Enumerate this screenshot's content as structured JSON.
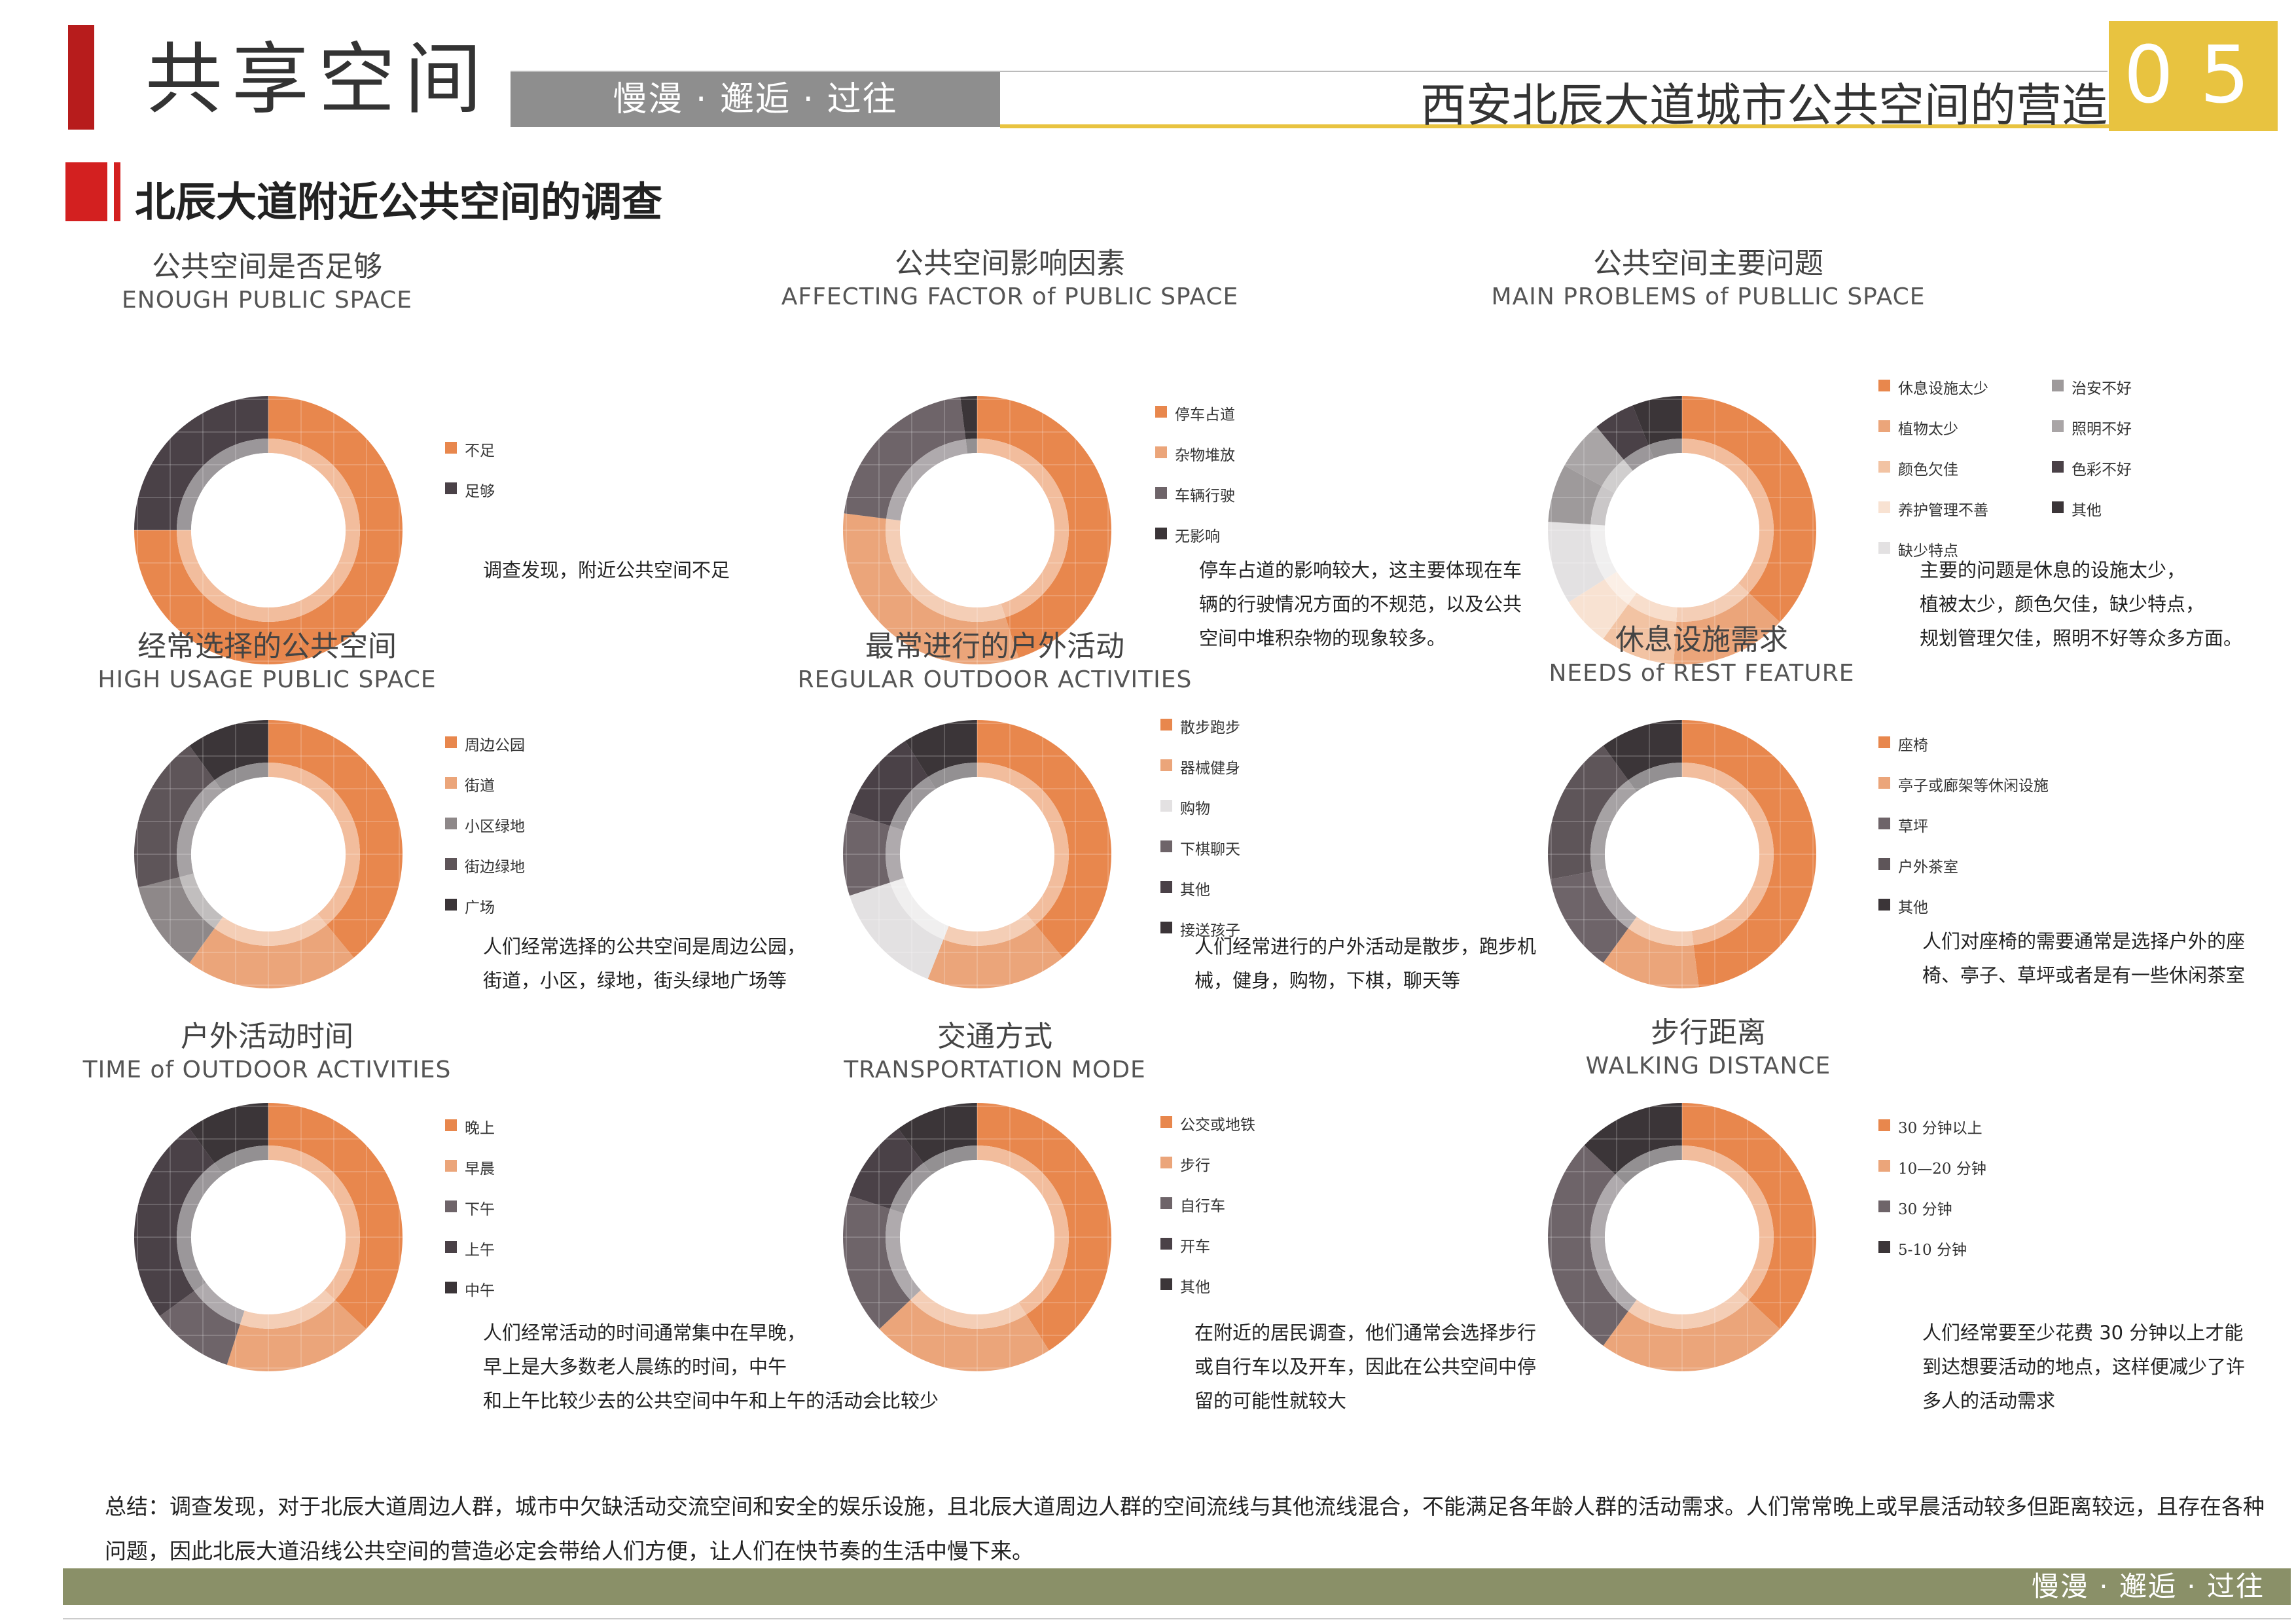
{
  "header": {
    "title": "共享空间",
    "tagline": "慢漫 · 邂逅 · 过往",
    "project": "西安北辰大道城市公共空间的营造",
    "page_num": "05"
  },
  "section": {
    "title": "北辰大道附近公共空间的调查"
  },
  "colors": {
    "orange": "#e8874d",
    "light_orange": "#eba57a",
    "peach": "#f2c3a3",
    "dark": "#4a4147",
    "mid": "#6e6469",
    "gray": "#9e9a9b",
    "light_gray": "#cfcccd",
    "dark2": "#3b3538"
  },
  "charts": [
    {
      "id": "enough",
      "title_cn": "公共空间是否足够",
      "title_en": "ENOUGH PUBLIC SPACE",
      "note": "调查发现，附近公共空间不足",
      "legend": [
        {
          "label": "不足",
          "color": "#e8874d"
        },
        {
          "label": "足够",
          "color": "#4a4147"
        }
      ]
    },
    {
      "id": "factor",
      "title_cn": "公共空间影响因素",
      "title_en": "AFFECTING FACTOR of PUBLIC SPACE",
      "note": "停车占道的影响较大，这主要体现在车\n辆的行驶情况方面的不规范，以及公共\n空间中堆积杂物的现象较多。",
      "legend": [
        {
          "label": "停车占道",
          "color": "#e8874d"
        },
        {
          "label": "杂物堆放",
          "color": "#eba57a"
        },
        {
          "label": "车辆行驶",
          "color": "#6e6469"
        },
        {
          "label": "无影响",
          "color": "#3b3538"
        }
      ]
    },
    {
      "id": "problems",
      "title_cn": "公共空间主要问题",
      "title_en": "MAIN PROBLEMS of PUBLLIC SPACE",
      "note": "主要的问题是休息的设施太少，\n植被太少，颜色欠佳，缺少特点，\n规划管理欠佳，照明不好等众多方面。",
      "legend": [
        {
          "label": "休息设施太少",
          "color": "#e8874d"
        },
        {
          "label": "植物太少",
          "color": "#eba57a"
        },
        {
          "label": "颜色欠佳",
          "color": "#f2c3a3"
        },
        {
          "label": "养护管理不善",
          "color": "#f8e2d2"
        },
        {
          "label": "缺少特点",
          "color": "#e3e1e2"
        },
        {
          "label": "治安不好",
          "color": "#9e9a9b"
        },
        {
          "label": "照明不好",
          "color": "#a9a5a6"
        },
        {
          "label": "色彩不好",
          "color": "#4a4147"
        },
        {
          "label": "其他",
          "color": "#3b3538"
        }
      ]
    },
    {
      "id": "usage",
      "title_cn": "经常选择的公共空间",
      "title_en": "HIGH USAGE PUBLIC SPACE",
      "note": "人们经常选择的公共空间是周边公园，\n街道，小区，绿地，街头绿地广场等",
      "legend": [
        {
          "label": "周边公园",
          "color": "#e8874d"
        },
        {
          "label": "街道",
          "color": "#eba57a"
        },
        {
          "label": "小区绿地",
          "color": "#8e8889"
        },
        {
          "label": "街边绿地",
          "color": "#5e5559"
        },
        {
          "label": "广场",
          "color": "#3b3538"
        }
      ]
    },
    {
      "id": "activities",
      "title_cn": "最常进行的户外活动",
      "title_en": "REGULAR OUTDOOR ACTIVITIES",
      "note": "人们经常进行的户外活动是散步，跑步机\n械，健身，购物，下棋，聊天等",
      "legend": [
        {
          "label": "散步跑步",
          "color": "#e8874d"
        },
        {
          "label": "器械健身",
          "color": "#eba57a"
        },
        {
          "label": "购物",
          "color": "#e3e1e2"
        },
        {
          "label": "下棋聊天",
          "color": "#6e6469"
        },
        {
          "label": "其他",
          "color": "#4a4147"
        },
        {
          "label": "接送孩子",
          "color": "#3b3538"
        }
      ]
    },
    {
      "id": "rest",
      "title_cn": "休息设施需求",
      "title_en": "NEEDS of REST FEATURE",
      "note": "人们对座椅的需要通常是选择户外的座\n椅、亭子、草坪或者是有一些休闲茶室",
      "legend": [
        {
          "label": "座椅",
          "color": "#e8874d"
        },
        {
          "label": "亭子或廊架等休闲设施",
          "color": "#eba57a"
        },
        {
          "label": "草坪",
          "color": "#6e6469"
        },
        {
          "label": "户外茶室",
          "color": "#5e5559"
        },
        {
          "label": "其他",
          "color": "#3b3538"
        }
      ]
    },
    {
      "id": "time",
      "title_cn": "户外活动时间",
      "title_en": "TIME of OUTDOOR ACTIVITIES",
      "note": "人们经常活动的时间通常集中在早晚，\n早上是大多数老人晨练的时间，中午\n和上午比较少去的公共空间中午和上午的活动会比较少",
      "legend": [
        {
          "label": "晚上",
          "color": "#e8874d"
        },
        {
          "label": "早晨",
          "color": "#eba57a"
        },
        {
          "label": "下午",
          "color": "#6e6469"
        },
        {
          "label": "上午",
          "color": "#4a4147"
        },
        {
          "label": "中午",
          "color": "#3b3538"
        }
      ]
    },
    {
      "id": "transport",
      "title_cn": "交通方式",
      "title_en": "TRANSPORTATION MODE",
      "note": "在附近的居民调查，他们通常会选择步行\n或自行车以及开车，因此在公共空间中停\n留的可能性就较大",
      "legend": [
        {
          "label": "公交或地铁",
          "color": "#e8874d"
        },
        {
          "label": "步行",
          "color": "#eba57a"
        },
        {
          "label": "自行车",
          "color": "#6e6469"
        },
        {
          "label": "开车",
          "color": "#4a4147"
        },
        {
          "label": "其他",
          "color": "#3b3538"
        }
      ]
    },
    {
      "id": "distance",
      "title_cn": "步行距离",
      "title_en": "WALKING DISTANCE",
      "note": "人们经常要至少花费 30 分钟以上才能\n到达想要活动的地点，这样便减少了许\n多人的活动需求",
      "legend": [
        {
          "label": "30 分钟以上",
          "color": "#e8874d"
        },
        {
          "label": "10—20 分钟",
          "color": "#eba57a"
        },
        {
          "label": "30 分钟",
          "color": "#6e6469"
        },
        {
          "label": "5-10 分钟",
          "color": "#3b3538"
        }
      ]
    }
  ],
  "chart_data": [
    {
      "type": "pie",
      "id": "enough",
      "categories": [
        "不足",
        "足够"
      ],
      "values": [
        75,
        25
      ]
    },
    {
      "type": "pie",
      "id": "factor",
      "categories": [
        "停车占道",
        "杂物堆放",
        "车辆行驶",
        "无影响"
      ],
      "values": [
        45,
        32,
        21,
        2
      ]
    },
    {
      "type": "pie",
      "id": "problems",
      "categories": [
        "休息设施太少",
        "植物太少",
        "颜色欠佳",
        "养护管理不善",
        "缺少特点",
        "治安不好",
        "照明不好",
        "色彩不好",
        "其他"
      ],
      "values": [
        37,
        14,
        9,
        6,
        10,
        7,
        6,
        5,
        6
      ]
    },
    {
      "type": "pie",
      "id": "usage",
      "categories": [
        "周边公园",
        "街道",
        "小区绿地",
        "街边绿地",
        "广场"
      ],
      "values": [
        39,
        21,
        11,
        19,
        10
      ]
    },
    {
      "type": "pie",
      "id": "activities",
      "categories": [
        "散步跑步",
        "器械健身",
        "购物",
        "下棋聊天",
        "其他",
        "接送孩子"
      ],
      "values": [
        39,
        17,
        14,
        10,
        11,
        9
      ]
    },
    {
      "type": "pie",
      "id": "rest",
      "categories": [
        "座椅",
        "亭子或廊架等休闲设施",
        "草坪",
        "户外茶室",
        "其他"
      ],
      "values": [
        48,
        12,
        12,
        18,
        10
      ]
    },
    {
      "type": "pie",
      "id": "time",
      "categories": [
        "晚上",
        "早晨",
        "下午",
        "上午",
        "中午"
      ],
      "values": [
        37,
        18,
        10,
        25,
        10
      ]
    },
    {
      "type": "pie",
      "id": "transport",
      "categories": [
        "公交或地铁",
        "步行",
        "自行车",
        "开车",
        "其他"
      ],
      "values": [
        41,
        22,
        17,
        10,
        10
      ]
    },
    {
      "type": "pie",
      "id": "distance",
      "categories": [
        "30 分钟以上",
        "10—20 分钟",
        "30 分钟",
        "5-10 分钟"
      ],
      "values": [
        37,
        23,
        27,
        13
      ]
    }
  ],
  "summary": "总结：调查发现，对于北辰大道周边人群，城市中欠缺活动交流空间和安全的娱乐设施，且北辰大道周边人群的空间流线与其他流线混合，不能满足各年龄人群的活动需求。人们常常晚上或早晨活动较多但距离较远，且存在各种问题，因此北辰大道沿线公共空间的营造必定会带给人们方便，让人们在快节奏的生活中慢下来。",
  "footer": {
    "tagline": "慢漫 · 邂逅 · 过往"
  }
}
